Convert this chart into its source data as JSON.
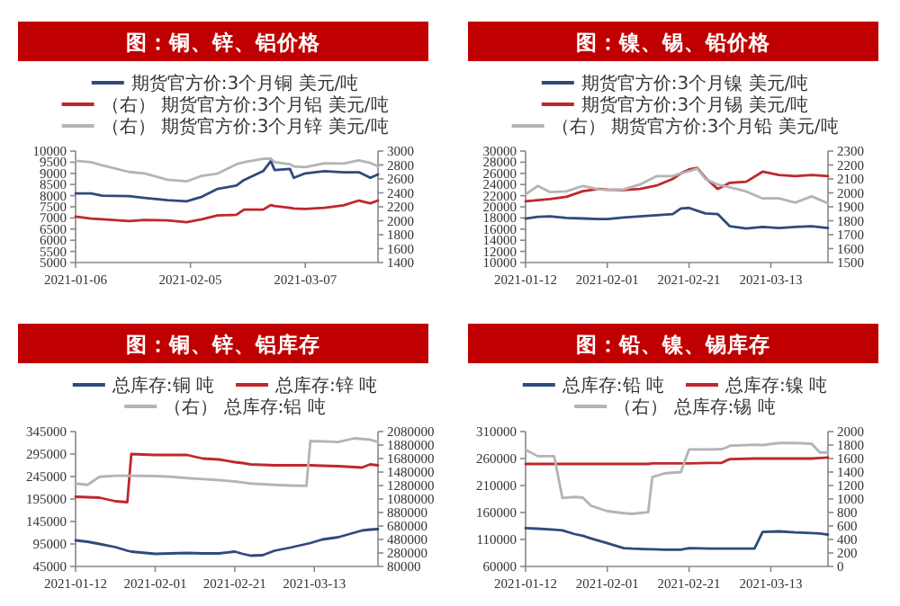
{
  "chart_data": [
    {
      "type": "line",
      "title": "图：铜、锌、铝价格",
      "legend": "top",
      "x": [
        "2021-01-06",
        "2021-01-10",
        "2021-01-13",
        "2021-01-20",
        "2021-01-24",
        "2021-01-30",
        "2021-02-04",
        "2021-02-08",
        "2021-02-12",
        "2021-02-17",
        "2021-02-19",
        "2021-02-24",
        "2021-02-26",
        "2021-02-27",
        "2021-03-03",
        "2021-03-04",
        "2021-03-07",
        "2021-03-12",
        "2021-03-17",
        "2021-03-21",
        "2021-03-24",
        "2021-03-26"
      ],
      "series": [
        {
          "name": "期货官方价:3个月铜 美元/吨",
          "color": "#2f4b7c",
          "values": [
            8100,
            8100,
            8000,
            7980,
            7900,
            7800,
            7750,
            7950,
            8300,
            8450,
            8700,
            9100,
            9550,
            9150,
            9200,
            8800,
            9000,
            9100,
            9050,
            9050,
            8800,
            8950
          ]
        },
        {
          "name": "（右） 期货官方价:3个月铝 美元/吨",
          "color": "#c0272d",
          "axis": "y2",
          "values": [
            2060,
            2030,
            2020,
            1995,
            2010,
            2005,
            1980,
            2020,
            2075,
            2085,
            2160,
            2160,
            2225,
            2210,
            2185,
            2175,
            2170,
            2185,
            2220,
            2290,
            2250,
            2290
          ]
        },
        {
          "name": "（右） 期货官方价:3个月锌 美元/吨",
          "color": "#b4b4b4",
          "axis": "y2",
          "values": [
            2860,
            2840,
            2795,
            2700,
            2680,
            2590,
            2565,
            2645,
            2675,
            2810,
            2840,
            2890,
            2890,
            2840,
            2810,
            2780,
            2770,
            2825,
            2820,
            2865,
            2830,
            2780
          ]
        }
      ],
      "xlim": [
        "2021-01-06",
        "2021-03-26"
      ],
      "xticks": [
        "2021-01-06",
        "2021-02-05",
        "2021-03-07"
      ],
      "ylim": [
        5000,
        10000
      ],
      "yticks": [
        5000,
        5500,
        6000,
        6500,
        7000,
        7500,
        8000,
        8500,
        9000,
        9500,
        10000
      ],
      "y2lim": [
        1400,
        3000
      ],
      "y2ticks": [
        1400,
        1600,
        1800,
        2000,
        2200,
        2400,
        2600,
        2800,
        3000
      ]
    },
    {
      "type": "line",
      "title": "图：镍、锡、铅价格",
      "legend": "top",
      "x": [
        "2021-01-12",
        "2021-01-15",
        "2021-01-18",
        "2021-01-22",
        "2021-01-26",
        "2021-01-30",
        "2021-02-01",
        "2021-02-05",
        "2021-02-09",
        "2021-02-13",
        "2021-02-17",
        "2021-02-19",
        "2021-02-21",
        "2021-02-23",
        "2021-02-25",
        "2021-02-28",
        "2021-03-03",
        "2021-03-07",
        "2021-03-11",
        "2021-03-15",
        "2021-03-19",
        "2021-03-23",
        "2021-03-27"
      ],
      "series": [
        {
          "name": "期货官方价:3个月镍 美元/吨",
          "color": "#2f4b7c",
          "values": [
            17900,
            18200,
            18300,
            18000,
            17900,
            17800,
            17800,
            18100,
            18300,
            18500,
            18700,
            19700,
            19800,
            19300,
            18800,
            18700,
            16500,
            16100,
            16400,
            16200,
            16400,
            16500,
            16200
          ]
        },
        {
          "name": "期货官方价:3个月锡 美元/吨",
          "color": "#c0272d",
          "values": [
            21000,
            21200,
            21400,
            21800,
            22800,
            23200,
            23100,
            23000,
            23200,
            23800,
            25000,
            26000,
            26700,
            27000,
            25200,
            23200,
            24300,
            24500,
            26300,
            25700,
            25500,
            25700,
            25500
          ]
        },
        {
          "name": "（右） 期货官方价:3个月铅 美元/吨",
          "color": "#b4b4b4",
          "axis": "y2",
          "values": [
            1990,
            2050,
            2005,
            2010,
            2050,
            2025,
            2020,
            2025,
            2060,
            2120,
            2120,
            2140,
            2155,
            2175,
            2100,
            2060,
            2040,
            2010,
            1960,
            1960,
            1930,
            1975,
            1925
          ]
        }
      ],
      "xlim": [
        "2021-01-12",
        "2021-03-27"
      ],
      "xticks": [
        "2021-01-12",
        "2021-02-01",
        "2021-02-21",
        "2021-03-13"
      ],
      "ylim": [
        10000,
        30000
      ],
      "yticks": [
        10000,
        12000,
        14000,
        16000,
        18000,
        20000,
        22000,
        24000,
        26000,
        28000,
        30000
      ],
      "y2lim": [
        1500,
        2300
      ],
      "y2ticks": [
        1500,
        1600,
        1700,
        1800,
        1900,
        2000,
        2100,
        2200,
        2300
      ]
    },
    {
      "type": "line",
      "title": "图：铜、锌、铝库存",
      "legend": "top",
      "x": [
        "2021-01-12",
        "2021-01-15",
        "2021-01-18",
        "2021-01-22",
        "2021-01-25",
        "2021-01-26",
        "2021-02-01",
        "2021-02-05",
        "2021-02-09",
        "2021-02-13",
        "2021-02-17",
        "2021-02-21",
        "2021-02-23",
        "2021-02-25",
        "2021-02-28",
        "2021-03-03",
        "2021-03-07",
        "2021-03-11",
        "2021-03-12",
        "2021-03-15",
        "2021-03-19",
        "2021-03-23",
        "2021-03-25",
        "2021-03-27",
        "2021-03-29"
      ],
      "series": [
        {
          "name": "总库存:铜 吨",
          "color": "#2f4b7c",
          "values": [
            103000,
            100000,
            95000,
            88000,
            80000,
            78000,
            73000,
            74000,
            75000,
            74000,
            74000,
            78000,
            73000,
            69000,
            70000,
            80000,
            87000,
            95000,
            97000,
            105000,
            110000,
            120000,
            125000,
            127000,
            128000
          ]
        },
        {
          "name": "总库存:锌 吨",
          "color": "#c0272d",
          "values": [
            200000,
            199000,
            198000,
            190000,
            188000,
            295000,
            293000,
            293000,
            293000,
            285000,
            283000,
            277000,
            275000,
            272000,
            271000,
            270000,
            270000,
            270000,
            270000,
            269000,
            268000,
            266000,
            265000,
            272000,
            270000
          ]
        },
        {
          "name": "（右） 总库存:铝 吨",
          "color": "#b4b4b4",
          "axis": "y2",
          "values": [
            1310000,
            1290000,
            1410000,
            1425000,
            1425000,
            1425000,
            1420000,
            1410000,
            1390000,
            1375000,
            1360000,
            1340000,
            1325000,
            1310000,
            1300000,
            1290000,
            1280000,
            1275000,
            1940000,
            1935000,
            1925000,
            1980000,
            1970000,
            1960000,
            1925000
          ]
        }
      ],
      "xlim": [
        "2021-01-12",
        "2021-03-29"
      ],
      "xticks": [
        "2021-01-12",
        "2021-02-01",
        "2021-02-21",
        "2021-03-13"
      ],
      "ylim": [
        45000,
        345000
      ],
      "yticks": [
        45000,
        95000,
        145000,
        195000,
        245000,
        295000,
        345000
      ],
      "y2lim": [
        80000,
        2080000
      ],
      "y2ticks": [
        80000,
        280000,
        480000,
        680000,
        880000,
        1080000,
        1280000,
        1480000,
        1680000,
        1880000,
        2080000
      ]
    },
    {
      "type": "line",
      "title": "图：铅、镍、锡库存",
      "legend": "top",
      "x": [
        "2021-01-12",
        "2021-01-15",
        "2021-01-19",
        "2021-01-21",
        "2021-01-24",
        "2021-01-26",
        "2021-01-28",
        "2021-02-01",
        "2021-02-05",
        "2021-02-07",
        "2021-02-11",
        "2021-02-12",
        "2021-02-15",
        "2021-02-19",
        "2021-02-21",
        "2021-02-26",
        "2021-03-01",
        "2021-03-02",
        "2021-03-03",
        "2021-03-09",
        "2021-03-11",
        "2021-03-15",
        "2021-03-19",
        "2021-03-23",
        "2021-03-25",
        "2021-03-27"
      ],
      "series": [
        {
          "name": "总库存:铅 吨",
          "color": "#2f4b7c",
          "values": [
            131000,
            130000,
            128000,
            127000,
            120000,
            117000,
            112000,
            103000,
            94000,
            93000,
            92000,
            92000,
            91000,
            91000,
            94000,
            93000,
            93000,
            93000,
            93000,
            93000,
            124000,
            125000,
            123000,
            122000,
            121000,
            119000
          ]
        },
        {
          "name": "总库存:镍 吨",
          "color": "#c0272d",
          "values": [
            250000,
            250000,
            250000,
            250000,
            250000,
            250000,
            250000,
            250000,
            250000,
            250000,
            250000,
            251000,
            251000,
            251000,
            251000,
            252000,
            252000,
            256000,
            259000,
            260000,
            260000,
            260000,
            260000,
            260000,
            261000,
            262000
          ]
        },
        {
          "name": "（右） 总库存:锡 吨",
          "color": "#b4b4b4",
          "axis": "y2",
          "values": [
            1730,
            1635,
            1635,
            1015,
            1030,
            1020,
            900,
            820,
            790,
            780,
            805,
            1325,
            1380,
            1400,
            1735,
            1735,
            1740,
            1760,
            1790,
            1805,
            1800,
            1830,
            1830,
            1820,
            1690,
            1690
          ]
        }
      ],
      "xlim": [
        "2021-01-12",
        "2021-03-27"
      ],
      "xticks": [
        "2021-01-12",
        "2021-02-01",
        "2021-02-21",
        "2021-03-13"
      ],
      "ylim": [
        60000,
        310000
      ],
      "yticks": [
        60000,
        110000,
        160000,
        210000,
        260000,
        310000
      ],
      "y2lim": [
        0,
        2000
      ],
      "y2ticks": [
        0,
        200,
        400,
        600,
        800,
        1000,
        1200,
        1400,
        1600,
        1800,
        2000
      ]
    }
  ]
}
